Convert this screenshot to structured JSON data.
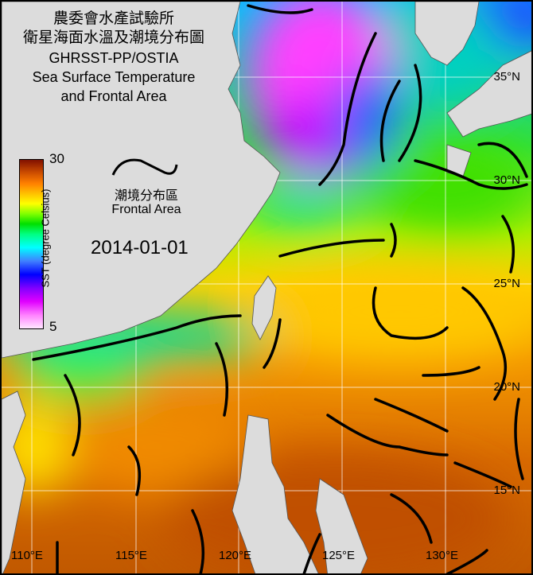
{
  "title": {
    "line1": "農委會水產試驗所",
    "line2": "衛星海面水溫及潮境分布圖",
    "line3": "GHRSST-PP/OSTIA",
    "line4": "Sea Surface Temperature",
    "line5": "and Frontal Area"
  },
  "legend": {
    "front_label_zh": "潮境分布區",
    "front_label_en": "Frontal Area",
    "front_color": "#000000"
  },
  "date": "2014-01-01",
  "colorbar": {
    "label": "SST (degree Celsius)",
    "max_label": "30",
    "min_label": "5",
    "range": [
      5,
      30
    ],
    "colors": [
      "#ffe8ff",
      "#ff80ff",
      "#8000ff",
      "#0000ff",
      "#00ffff",
      "#00e000",
      "#ffff00",
      "#ff8000",
      "#801000"
    ]
  },
  "latitude_labels": [
    "35°N",
    "30°N",
    "25°N",
    "20°N",
    "15°N"
  ],
  "longitude_labels": [
    "110°E",
    "115°E",
    "120°E",
    "125°E",
    "130°E"
  ],
  "land_color": "#dcdcdc"
}
